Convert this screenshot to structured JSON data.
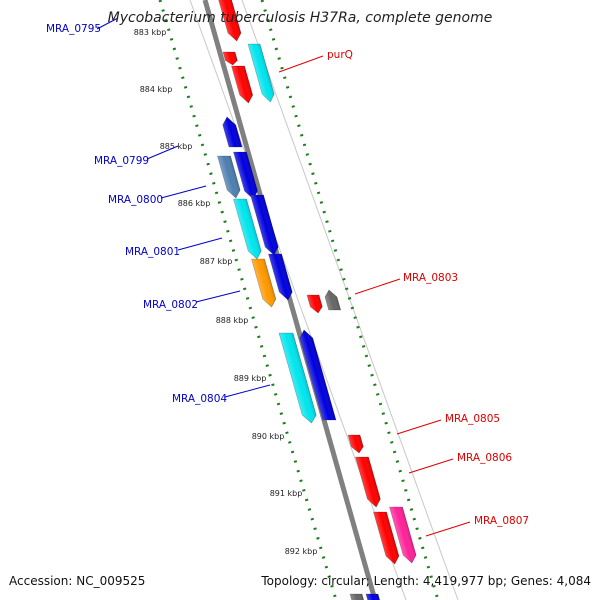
{
  "title": "Mycobacterium tuberculosis H37Ra, complete genome",
  "accession": "Accession: NC_009525",
  "topology": "Topology: circular; Length: 4,419,977 bp; Genes: 4,084",
  "colors": {
    "backbone": "#808080",
    "tick": "#1e7d1e",
    "gene_red": "#ff0000",
    "gene_blue": "#0000dd",
    "gene_cyan": "#00e5ee",
    "gene_steel": "#4e7fb0",
    "gene_orange": "#ff9900",
    "gene_gray": "#666666",
    "gene_pink": "#ff2299",
    "label_blue": "#0000cc",
    "label_red": "#dd0000"
  },
  "ticks": [
    "883 kbp",
    "884 kbp",
    "885 kbp",
    "886 kbp",
    "887 kbp",
    "888 kbp",
    "889 kbp",
    "890 kbp",
    "891 kbp",
    "892 kbp"
  ],
  "gene_labels": [
    {
      "text": "MRA_0795",
      "color": "blue"
    },
    {
      "text": "purQ",
      "color": "red"
    },
    {
      "text": "MRA_0799",
      "color": "blue"
    },
    {
      "text": "MRA_0800",
      "color": "blue"
    },
    {
      "text": "MRA_0801",
      "color": "blue"
    },
    {
      "text": "MRA_0802",
      "color": "blue"
    },
    {
      "text": "MRA_0803",
      "color": "red"
    },
    {
      "text": "MRA_0804",
      "color": "blue"
    },
    {
      "text": "MRA_0805",
      "color": "red"
    },
    {
      "text": "MRA_0806",
      "color": "red"
    },
    {
      "text": "MRA_0807",
      "color": "red"
    }
  ]
}
